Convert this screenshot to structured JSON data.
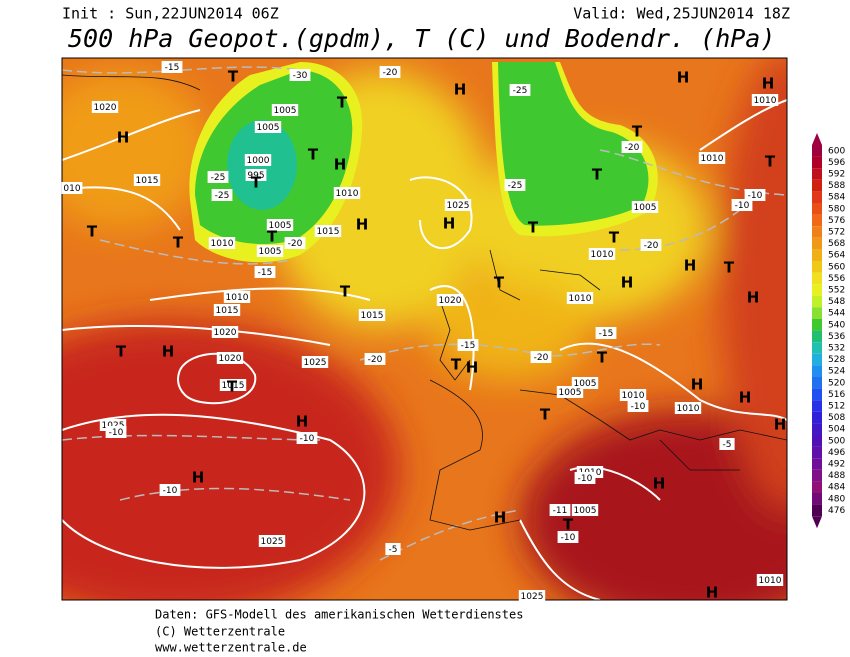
{
  "header": {
    "init": "Init : Sun,22JUN2014 06Z",
    "valid": "Valid: Wed,25JUN2014 18Z",
    "title": "500 hPa Geopot.(gpdm), T (C) und Bodendr. (hPa)"
  },
  "colorbar": {
    "values": [
      600,
      596,
      592,
      588,
      584,
      580,
      576,
      572,
      568,
      564,
      560,
      556,
      552,
      548,
      544,
      540,
      536,
      532,
      528,
      524,
      520,
      516,
      512,
      508,
      504,
      500,
      496,
      492,
      488,
      484,
      480,
      476
    ],
    "colors": [
      "#9e0040",
      "#b0002a",
      "#c0101e",
      "#d02010",
      "#e03818",
      "#e85018",
      "#f06818",
      "#f08018",
      "#f09818",
      "#f0b018",
      "#f0c818",
      "#f0e020",
      "#e8f020",
      "#c0f028",
      "#88e030",
      "#40c830",
      "#20c070",
      "#20c0b0",
      "#20b0e0",
      "#2090f0",
      "#2070f0",
      "#2050f0",
      "#2830e8",
      "#3020d8",
      "#4018c8",
      "#5010b8",
      "#6010a8",
      "#701098",
      "#801088",
      "#901078",
      "#700a78",
      "#500050"
    ]
  },
  "map": {
    "systems": [
      "T",
      "T",
      "T",
      "T",
      "T",
      "T",
      "T",
      "T",
      "T",
      "T",
      "T",
      "T",
      "T",
      "T",
      "T",
      "T",
      "T",
      "T",
      "T",
      "T",
      "T",
      "H",
      "H",
      "H",
      "H",
      "H",
      "H",
      "H",
      "H",
      "H",
      "H",
      "H",
      "H",
      "H",
      "H",
      "H",
      "H",
      "H",
      "H",
      "H",
      "H"
    ],
    "pressure_labels": [
      "1020",
      "1005",
      "1005",
      "1000",
      "995",
      "1015",
      "1010",
      "1005",
      "1015",
      "1010",
      "1005",
      "1010",
      "1015",
      "1020",
      "1020",
      "1015",
      "1025",
      "1015",
      "1025",
      "1020",
      "1010",
      "1010",
      "1005",
      "1010",
      "1010",
      "1005",
      "1005",
      "1010",
      "1010",
      "1010",
      "1005",
      "1025",
      "1025",
      "1010",
      "010",
      "1025"
    ],
    "temperature_labels": [
      "-15",
      "-30",
      "-20",
      "-25",
      "-20",
      "-25",
      "-25",
      "-25",
      "-20",
      "-15",
      "-10",
      "-10",
      "-20",
      "-15",
      "-15",
      "-20",
      "-20",
      "-10",
      "-10",
      "-10",
      "-10",
      "-5",
      "-10",
      "-10",
      "-11",
      "-5"
    ]
  },
  "footer": {
    "source": "Daten: GFS-Modell des amerikanischen Wetterdienstes",
    "copyright": "(C) Wetterzentrale",
    "url": "www.wetterzentrale.de"
  }
}
